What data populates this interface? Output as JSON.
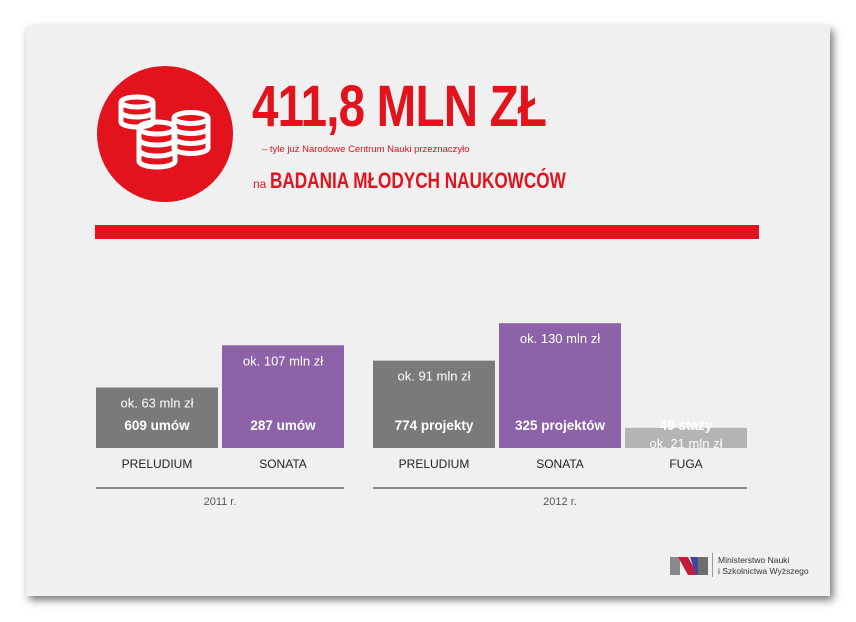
{
  "header": {
    "amount": "411,8 MLN ZŁ",
    "subline": "– tyle już Narodowe Centrum Nauki przeznaczyło",
    "prefix": "na",
    "emphasis": "BADANIA MŁODYCH NAUKOWCÓW",
    "icon": "coins-icon"
  },
  "colors": {
    "brand_red": "#e2131d",
    "preludium_gray": "#7a7a7a",
    "sonata_purple": "#8e62a8",
    "fuga_light_gray": "#b4b4b4",
    "background": "#f0f0f0"
  },
  "chart_data": {
    "type": "bar",
    "unit": "mln zł",
    "groups": [
      {
        "year_label": "2011 r.",
        "bars": [
          {
            "category": "PRELUDIUM",
            "value": 63,
            "amount_label": "ok. 63 mln zł",
            "count_label": "609 umów",
            "color": "#7a7a7a"
          },
          {
            "category": "SONATA",
            "value": 107,
            "amount_label": "ok. 107 mln zł",
            "count_label": "287 umów",
            "color": "#8e62a8"
          }
        ]
      },
      {
        "year_label": "2012 r.",
        "bars": [
          {
            "category": "PRELUDIUM",
            "value": 91,
            "amount_label": "ok. 91 mln zł",
            "count_label": "774 projekty",
            "color": "#7a7a7a"
          },
          {
            "category": "SONATA",
            "value": 130,
            "amount_label": "ok. 130 mln zł",
            "count_label": "325 projektów",
            "color": "#8e62a8"
          },
          {
            "category": "FUGA",
            "value": 21,
            "amount_label": "ok. 21 mln zł",
            "count_label": "49 staży",
            "color": "#b4b4b4"
          }
        ]
      }
    ]
  },
  "footer": {
    "ministry_line1": "Ministerstwo Nauki",
    "ministry_line2": "i Szkolnictwa Wyższego",
    "logo_icon": "mnisw-logo-icon"
  }
}
